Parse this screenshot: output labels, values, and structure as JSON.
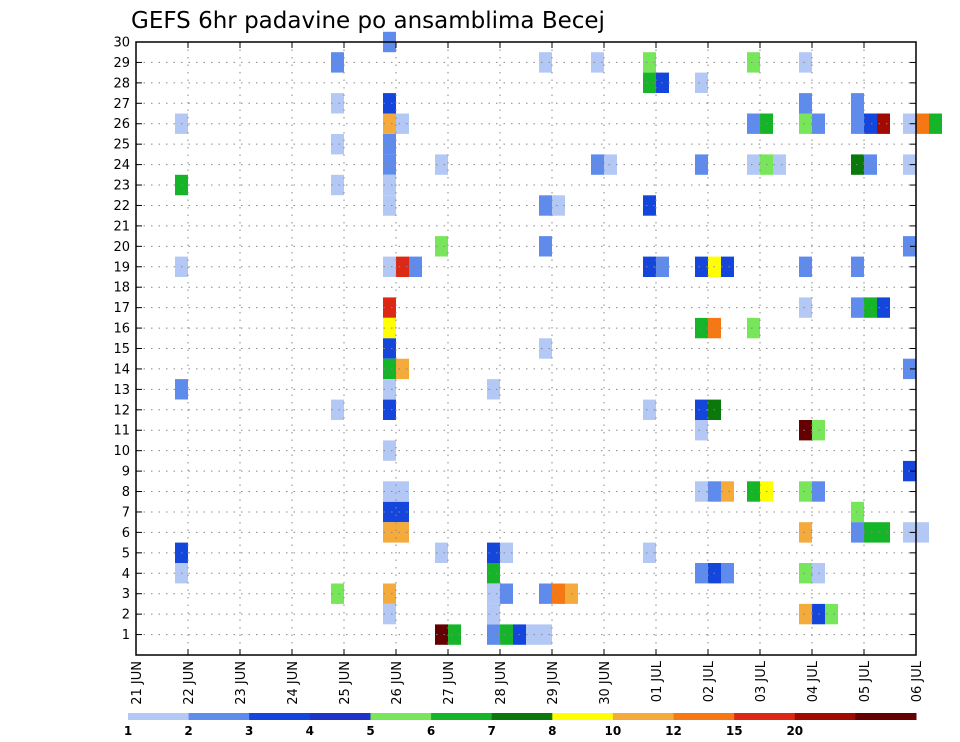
{
  "chart_data": {
    "type": "heatmap",
    "title": "GEFS 6hr padavine po ansamblima Becej",
    "xlabel": "",
    "ylabel": "",
    "x_tick_labels": [
      "21 JUN",
      "22 JUN",
      "23 JUN",
      "24 JUN",
      "25 JUN",
      "26 JUN",
      "27 JUN",
      "28 JUN",
      "29 JUN",
      "30 JUN",
      "01 JUL",
      "02 JUL",
      "03 JUL",
      "04 JUL",
      "05 JUL",
      "06 JUL"
    ],
    "x_range_days": [
      0,
      15
    ],
    "steps_per_day": 4,
    "y_tick_labels": [
      "1",
      "2",
      "3",
      "4",
      "5",
      "6",
      "7",
      "8",
      "9",
      "10",
      "11",
      "12",
      "13",
      "14",
      "15",
      "16",
      "17",
      "18",
      "19",
      "20",
      "21",
      "22",
      "23",
      "24",
      "25",
      "26",
      "27",
      "28",
      "29",
      "30"
    ],
    "y_range": [
      0,
      30
    ],
    "grid": true,
    "colorbar": {
      "levels": [
        "1",
        "2",
        "3",
        "4",
        "5",
        "6",
        "7",
        "8",
        "10",
        "12",
        "15",
        "20"
      ],
      "colors": [
        "#b4c8f5",
        "#5f8cec",
        "#1446dc",
        "#1e32c8",
        "#78e65a",
        "#16b428",
        "#0a780a",
        "#ffff00",
        "#f5aa3c",
        "#f57814",
        "#dc2814",
        "#a00a00",
        "#640000"
      ]
    },
    "cells": [
      [
        5,
        30,
        1
      ],
      [
        4,
        29,
        1
      ],
      [
        8,
        29,
        0
      ],
      [
        9,
        29,
        0
      ],
      [
        10,
        29,
        4
      ],
      [
        12,
        29,
        4
      ],
      [
        13,
        29,
        0
      ],
      [
        10,
        28,
        5
      ],
      [
        10,
        28,
        2
      ],
      [
        11,
        28,
        0
      ],
      [
        4,
        27,
        0
      ],
      [
        5,
        27,
        2
      ],
      [
        13,
        27,
        1
      ],
      [
        14,
        27,
        1
      ],
      [
        1,
        26,
        0
      ],
      [
        5,
        26,
        8
      ],
      [
        5,
        26,
        0
      ],
      [
        12,
        26,
        1
      ],
      [
        12,
        26,
        5
      ],
      [
        13,
        26,
        4
      ],
      [
        13,
        26,
        1
      ],
      [
        14,
        26,
        1
      ],
      [
        14,
        26,
        2
      ],
      [
        14,
        26,
        11
      ],
      [
        15,
        26,
        0
      ],
      [
        15,
        26,
        9
      ],
      [
        15,
        26,
        5
      ],
      [
        4,
        25,
        0
      ],
      [
        5,
        25,
        1
      ],
      [
        5,
        24,
        1
      ],
      [
        6,
        24,
        0
      ],
      [
        9,
        24,
        1
      ],
      [
        9,
        24,
        0
      ],
      [
        11,
        24,
        1
      ],
      [
        12,
        24,
        0
      ],
      [
        12,
        24,
        4
      ],
      [
        12,
        24,
        0
      ],
      [
        14,
        24,
        6
      ],
      [
        14,
        24,
        1
      ],
      [
        15,
        24,
        0
      ],
      [
        1,
        23,
        5
      ],
      [
        4,
        23,
        0
      ],
      [
        5,
        23,
        0
      ],
      [
        5,
        22,
        0
      ],
      [
        8,
        22,
        1
      ],
      [
        8,
        22,
        0
      ],
      [
        10,
        22,
        2
      ],
      [
        6,
        20,
        4
      ],
      [
        8,
        20,
        1
      ],
      [
        15,
        20,
        1
      ],
      [
        1,
        19,
        0
      ],
      [
        5,
        19,
        0
      ],
      [
        5,
        19,
        10
      ],
      [
        5,
        19,
        1
      ],
      [
        10,
        19,
        2
      ],
      [
        10,
        19,
        1
      ],
      [
        11,
        19,
        2
      ],
      [
        11,
        19,
        7
      ],
      [
        11,
        19,
        2
      ],
      [
        13,
        19,
        1
      ],
      [
        14,
        19,
        1
      ],
      [
        5,
        17,
        10
      ],
      [
        13,
        17,
        0
      ],
      [
        14,
        17,
        1
      ],
      [
        14,
        17,
        5
      ],
      [
        14,
        17,
        2
      ],
      [
        5,
        16,
        7
      ],
      [
        11,
        16,
        5
      ],
      [
        11,
        16,
        9
      ],
      [
        12,
        16,
        4
      ],
      [
        5,
        15,
        2
      ],
      [
        8,
        15,
        0
      ],
      [
        5,
        14,
        5
      ],
      [
        5,
        14,
        8
      ],
      [
        15,
        14,
        1
      ],
      [
        1,
        13,
        1
      ],
      [
        5,
        13,
        0
      ],
      [
        7,
        13,
        0
      ],
      [
        4,
        12,
        0
      ],
      [
        5,
        12,
        2
      ],
      [
        10,
        12,
        0
      ],
      [
        11,
        12,
        2
      ],
      [
        11,
        12,
        6
      ],
      [
        11,
        11,
        0
      ],
      [
        13,
        11,
        12
      ],
      [
        13,
        11,
        4
      ],
      [
        5,
        10,
        0
      ],
      [
        15,
        9,
        2
      ],
      [
        5,
        8,
        0
      ],
      [
        5,
        8,
        0
      ],
      [
        11,
        8,
        0
      ],
      [
        11,
        8,
        1
      ],
      [
        11,
        8,
        8
      ],
      [
        12,
        8,
        5
      ],
      [
        12,
        8,
        7
      ],
      [
        13,
        8,
        4
      ],
      [
        13,
        8,
        1
      ],
      [
        5,
        7,
        2
      ],
      [
        5,
        7,
        2
      ],
      [
        14,
        7,
        4
      ],
      [
        5,
        6,
        8
      ],
      [
        5,
        6,
        8
      ],
      [
        13,
        6,
        8
      ],
      [
        14,
        6,
        1
      ],
      [
        14,
        6,
        5
      ],
      [
        14,
        6,
        5
      ],
      [
        15,
        6,
        0
      ],
      [
        15,
        6,
        0
      ],
      [
        1,
        5,
        2
      ],
      [
        6,
        5,
        0
      ],
      [
        7,
        5,
        2
      ],
      [
        7,
        5,
        0
      ],
      [
        10,
        5,
        0
      ],
      [
        1,
        4,
        0
      ],
      [
        7,
        4,
        5
      ],
      [
        11,
        4,
        1
      ],
      [
        11,
        4,
        2
      ],
      [
        11,
        4,
        1
      ],
      [
        13,
        4,
        4
      ],
      [
        13,
        4,
        0
      ],
      [
        4,
        3,
        4
      ],
      [
        5,
        3,
        8
      ],
      [
        7,
        3,
        0
      ],
      [
        7,
        3,
        1
      ],
      [
        8,
        3,
        1
      ],
      [
        8,
        3,
        9
      ],
      [
        8,
        3,
        8
      ],
      [
        5,
        2,
        0
      ],
      [
        7,
        2,
        0
      ],
      [
        13,
        2,
        8
      ],
      [
        13,
        2,
        2
      ],
      [
        13,
        2,
        4
      ],
      [
        6,
        1,
        12
      ],
      [
        6,
        1,
        5
      ],
      [
        7,
        1,
        1
      ],
      [
        7,
        1,
        5
      ],
      [
        7,
        1,
        2
      ],
      [
        7,
        1,
        0
      ],
      [
        8,
        1,
        0
      ]
    ]
  }
}
